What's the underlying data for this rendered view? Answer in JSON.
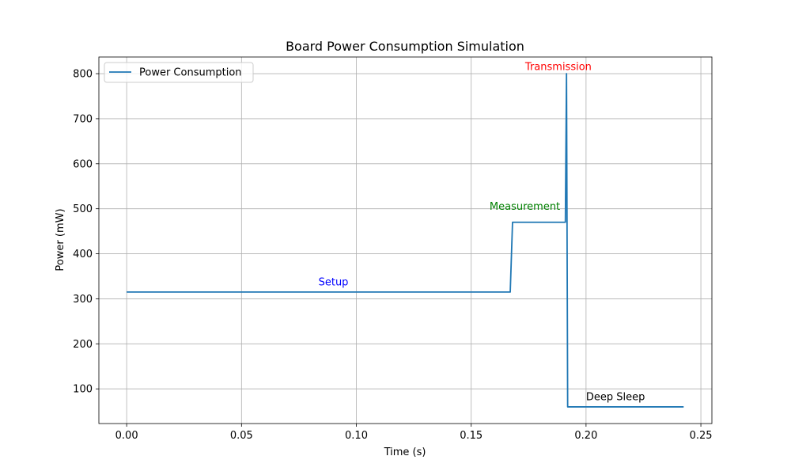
{
  "chart_data": {
    "type": "line",
    "title": "Board Power Consumption Simulation",
    "xlabel": "Time (s)",
    "ylabel": "Power (mW)",
    "xlim": [
      -0.0121,
      0.2548
    ],
    "ylim": [
      23,
      837
    ],
    "xticks": [
      0.0,
      0.05,
      0.1,
      0.15,
      0.2,
      0.25
    ],
    "xtick_labels": [
      "0.00",
      "0.05",
      "0.10",
      "0.15",
      "0.20",
      "0.25"
    ],
    "yticks": [
      100,
      200,
      300,
      400,
      500,
      600,
      700,
      800
    ],
    "ytick_labels": [
      "100",
      "200",
      "300",
      "400",
      "500",
      "600",
      "700",
      "800"
    ],
    "grid": true,
    "legend": {
      "placement": "top-left",
      "entries": [
        "Power Consumption"
      ]
    },
    "series": [
      {
        "name": "Power Consumption",
        "color": "#1f77b4",
        "x": [
          0.0,
          0.167,
          0.168,
          0.191,
          0.1915,
          0.192,
          0.2425
        ],
        "y": [
          315,
          315,
          470,
          470,
          800,
          60,
          60
        ]
      }
    ],
    "annotations": [
      {
        "text": "Setup",
        "x": 0.0835,
        "y": 330,
        "color": "#0000ff"
      },
      {
        "text": "Measurement",
        "x": 0.158,
        "y": 498,
        "color": "#008000"
      },
      {
        "text": "Transmission",
        "x": 0.1735,
        "y": 808,
        "color": "#ff0000"
      },
      {
        "text": "Deep Sleep",
        "x": 0.2,
        "y": 75,
        "color": "#000000"
      }
    ]
  }
}
